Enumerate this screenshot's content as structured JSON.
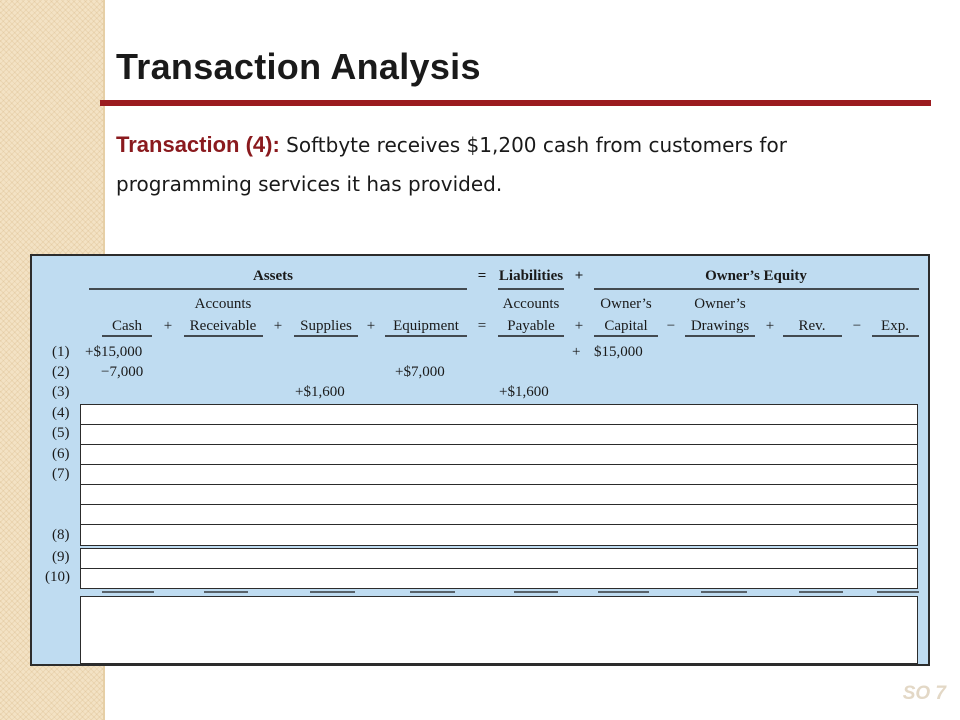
{
  "slide": {
    "title": "Transaction Analysis",
    "subtitle_label": "Transaction (4):",
    "subtitle_text": " Softbyte receives $1,200 cash from customers for programming services it has provided.",
    "footer_tag": "SO 7"
  },
  "equation": {
    "group_assets": "Assets",
    "equals": "=",
    "group_liabilities": "Liabilities",
    "plus": "+",
    "group_equity": "Owner’s Equity",
    "col_cash": "Cash",
    "col_ar_top": "Accounts",
    "col_ar_bottom": "Receivable",
    "col_supplies": "Supplies",
    "col_equipment": "Equipment",
    "col_ap_top": "Accounts",
    "col_ap_bottom": "Payable",
    "col_capital_top": "Owner’s",
    "col_capital_bottom": "Capital",
    "col_drawings_top": "Owner’s",
    "col_drawings_bottom": "Drawings",
    "col_rev": "Rev.",
    "col_exp": "Exp.",
    "op_plus": "+",
    "op_minus": "−",
    "op_eq": "="
  },
  "rows": [
    {
      "num": "(1)",
      "cash": "+$15,000",
      "plus_capital": "+",
      "capital": "$15,000"
    },
    {
      "num": "(2)",
      "cash": "−7,000",
      "equipment": "+$7,000"
    },
    {
      "num": "(3)",
      "supplies": "+$1,600",
      "ap": "+$1,600"
    },
    {
      "num": "(4)"
    },
    {
      "num": "(5)"
    },
    {
      "num": "(6)"
    },
    {
      "num": "(7)"
    },
    {
      "num": "(8)"
    },
    {
      "num": "(9)"
    },
    {
      "num": "(10)"
    }
  ]
}
